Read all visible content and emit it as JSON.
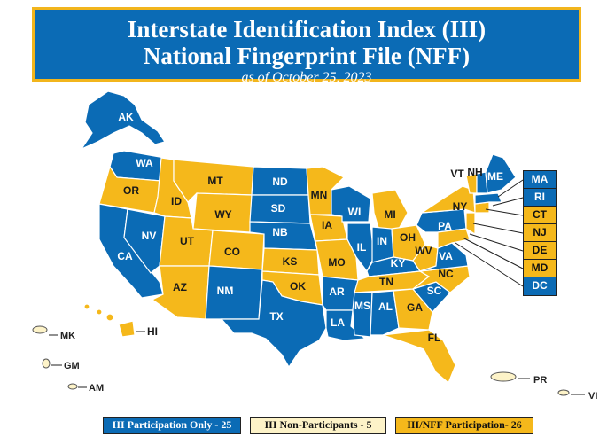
{
  "title": {
    "line1": "Interstate Identification Index (III)",
    "line2": "National Fingerprint File (NFF)",
    "line3": "as of October 25, 2023"
  },
  "colors": {
    "iii_only": "#0b6bb5",
    "non_participant": "#fdf3c8",
    "nff": "#f5b81b",
    "border": "#f2b51c"
  },
  "states": {
    "AK": "AK",
    "WA": "WA",
    "OR": "OR",
    "CA": "CA",
    "NV": "NV",
    "ID": "ID",
    "MT": "MT",
    "WY": "WY",
    "UT": "UT",
    "AZ": "AZ",
    "CO": "CO",
    "NM": "NM",
    "ND": "ND",
    "SD": "SD",
    "NB": "NB",
    "KS": "KS",
    "OK": "OK",
    "TX": "TX",
    "MN": "MN",
    "IA": "IA",
    "MO": "MO",
    "AR": "AR",
    "LA": "LA",
    "WI": "WI",
    "IL": "IL",
    "MS": "MS",
    "MI": "MI",
    "IN": "IN",
    "KY": "KY",
    "TN": "TN",
    "AL": "AL",
    "OH": "OH",
    "WV": "WV",
    "GA": "GA",
    "FL": "FL",
    "SC": "SC",
    "NC": "NC",
    "VA": "VA",
    "PA": "PA",
    "NY": "NY",
    "VT": "VT",
    "NH": "NH",
    "ME": "ME",
    "HI": "HI"
  },
  "side_boxes": [
    "MA",
    "RI",
    "CT",
    "NJ",
    "DE",
    "MD",
    "DC"
  ],
  "territories": {
    "MK": "MK",
    "GM": "GM",
    "AM": "AM",
    "PR": "PR",
    "VI": "VI"
  },
  "legend": {
    "iii_only": "III Participation Only - 25",
    "non_participants": "III Non-Participants - 5",
    "nff": "III/NFF Participation- 26"
  }
}
